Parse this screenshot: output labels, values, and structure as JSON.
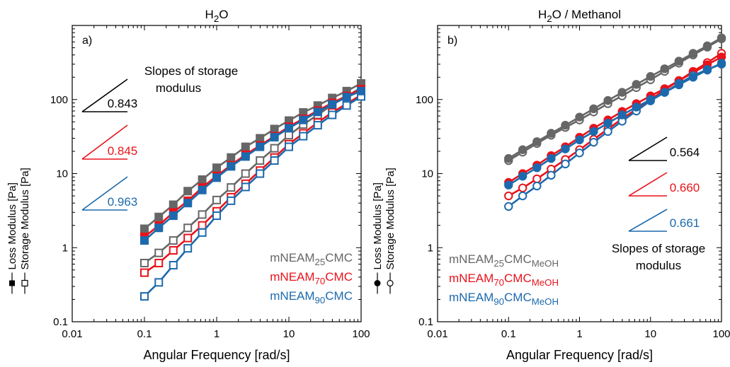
{
  "colors": {
    "gray": "#666666",
    "red": "#e8131b",
    "blue": "#1c6aad",
    "black": "#000000"
  },
  "chart_data": [
    {
      "type": "line",
      "title": {
        "base": "H",
        "sub": "2",
        "rest": "O"
      },
      "panel_label": "a)",
      "xlabel": "Angular Frequency [rad/s]",
      "ylabel": {
        "loss": "Loss Modulus [Pa]",
        "storage": "Storage Modulus [Pa]"
      },
      "xscale": "log",
      "yscale": "log",
      "xlim": [
        0.01,
        100
      ],
      "ylim": [
        0.1,
        1000
      ],
      "xticks": [
        {
          "v": 0.01,
          "label": "0.01"
        },
        {
          "v": 0.1,
          "label": "0.1"
        },
        {
          "v": 1,
          "label": "1"
        },
        {
          "v": 10,
          "label": "10"
        },
        {
          "v": 100,
          "label": "100"
        }
      ],
      "yticks": [
        {
          "v": 0.1,
          "label": "0.1"
        },
        {
          "v": 1,
          "label": "1"
        },
        {
          "v": 10,
          "label": "10"
        },
        {
          "v": 100,
          "label": "100"
        }
      ],
      "marker": "square",
      "x": [
        0.1,
        0.158,
        0.251,
        0.398,
        0.631,
        1.0,
        1.58,
        2.51,
        3.98,
        6.31,
        10.0,
        15.8,
        25.1,
        39.8,
        63.1,
        100
      ],
      "series": [
        {
          "name": {
            "base": "mNEAM",
            "sub": "25",
            "rest": "CMC",
            "sub2": ""
          },
          "color": "gray",
          "loss": [
            1.8,
            2.6,
            3.8,
            5.8,
            8.3,
            12.0,
            16.5,
            23.0,
            30.0,
            40.0,
            52.0,
            67.0,
            83.0,
            105.0,
            130.0,
            165.0
          ],
          "storage": [
            0.62,
            0.85,
            1.25,
            1.85,
            2.8,
            4.4,
            6.5,
            10.0,
            15.0,
            22.0,
            33.0,
            46.0,
            62.0,
            85.0,
            110.0,
            145.0
          ]
        },
        {
          "name": {
            "base": "mNEAM",
            "sub": "70",
            "rest": "CMC",
            "sub2": ""
          },
          "color": "red",
          "loss": [
            1.4,
            2.0,
            3.0,
            4.3,
            6.5,
            9.3,
            13.0,
            18.0,
            24.0,
            32.0,
            43.0,
            55.0,
            71.0,
            90.0,
            112.0,
            138.0
          ],
          "storage": [
            0.46,
            0.62,
            0.92,
            1.35,
            2.0,
            3.1,
            4.8,
            7.3,
            11.0,
            16.5,
            25.0,
            35.0,
            49.0,
            67.0,
            88.0,
            115.0
          ]
        },
        {
          "name": {
            "base": "mNEAM",
            "sub": "90",
            "rest": "CMC",
            "sub2": ""
          },
          "color": "blue",
          "loss": [
            1.25,
            1.85,
            2.7,
            4.0,
            6.0,
            8.8,
            12.5,
            17.0,
            23.0,
            31.0,
            41.0,
            53.0,
            68.0,
            86.0,
            108.0,
            130.0
          ],
          "storage": [
            0.22,
            0.34,
            0.58,
            0.98,
            1.6,
            2.7,
            4.3,
            6.6,
            10.0,
            15.0,
            23.0,
            32.0,
            45.0,
            62.0,
            83.0,
            110.0
          ]
        }
      ],
      "annotation_title": [
        "Slopes of storage",
        "modulus"
      ],
      "slopes": [
        {
          "label": "0.843",
          "color": "black"
        },
        {
          "label": "0.845",
          "color": "red"
        },
        {
          "label": "0.963",
          "color": "blue"
        }
      ]
    },
    {
      "type": "line",
      "title": {
        "base": "H",
        "sub": "2",
        "rest": "O / Methanol"
      },
      "panel_label": "b)",
      "xlabel": "Angular Frequency [rad/s]",
      "ylabel": {
        "loss": "Loss Modulus [Pa]",
        "storage": "Storage Modulus [Pa]"
      },
      "xscale": "log",
      "yscale": "log",
      "xlim": [
        0.01,
        100
      ],
      "ylim": [
        0.1,
        1000
      ],
      "xticks": [
        {
          "v": 0.01,
          "label": "0.01"
        },
        {
          "v": 0.1,
          "label": "0.1"
        },
        {
          "v": 1,
          "label": "1"
        },
        {
          "v": 10,
          "label": "10"
        },
        {
          "v": 100,
          "label": "100"
        }
      ],
      "yticks": [
        {
          "v": 0.1,
          "label": "0.1"
        },
        {
          "v": 1,
          "label": "1"
        },
        {
          "v": 10,
          "label": "10"
        },
        {
          "v": 100,
          "label": "100"
        }
      ],
      "marker": "circle",
      "x": [
        0.1,
        0.158,
        0.251,
        0.398,
        0.631,
        1.0,
        1.58,
        2.51,
        3.98,
        6.31,
        10.0,
        15.8,
        25.1,
        39.8,
        63.1,
        100
      ],
      "series": [
        {
          "name": {
            "base": "mNEAM",
            "sub": "25",
            "rest": "CMC",
            "sub2": "MeOH"
          },
          "color": "gray",
          "loss": [
            16.0,
            21.0,
            27.0,
            35.0,
            45.0,
            58.0,
            75.0,
            97.0,
            125.0,
            160.0,
            205.0,
            260.0,
            330.0,
            420.0,
            530.0,
            680.0
          ],
          "storage": [
            15.0,
            19.5,
            25.5,
            33.0,
            42.0,
            53.0,
            68.0,
            88.0,
            112.0,
            145.0,
            185.0,
            240.0,
            310.0,
            400.0,
            510.0,
            660.0
          ]
        },
        {
          "name": {
            "base": "mNEAM",
            "sub": "70",
            "rest": "CMC",
            "sub2": "MeOH"
          },
          "color": "red",
          "loss": [
            7.6,
            10.0,
            13.0,
            17.5,
            23.0,
            31.0,
            41.0,
            53.0,
            69.0,
            88.0,
            112.0,
            140.0,
            180.0,
            230.0,
            295.0,
            375.0
          ],
          "storage": [
            5.0,
            6.4,
            8.5,
            11.5,
            15.5,
            21.0,
            29.0,
            40.0,
            55.0,
            74.0,
            100.0,
            135.0,
            180.0,
            240.0,
            315.0,
            420.0
          ]
        },
        {
          "name": {
            "base": "mNEAM",
            "sub": "90",
            "rest": "CMC",
            "sub2": "MeOH"
          },
          "color": "blue",
          "loss": [
            7.0,
            9.2,
            12.0,
            16.0,
            21.5,
            28.5,
            37.0,
            48.0,
            62.0,
            79.0,
            100.0,
            125.0,
            158.0,
            200.0,
            250.0,
            310.0
          ],
          "storage": [
            3.6,
            5.0,
            6.8,
            9.5,
            13.5,
            19.0,
            26.5,
            37.0,
            51.0,
            70.0,
            96.0,
            125.0,
            165.0,
            210.0,
            255.0,
            300.0
          ]
        }
      ],
      "annotation_title": [
        "Slopes of storage",
        "modulus"
      ],
      "slopes": [
        {
          "label": "0.564",
          "color": "black"
        },
        {
          "label": "0.660",
          "color": "red"
        },
        {
          "label": "0.661",
          "color": "blue"
        }
      ]
    }
  ]
}
